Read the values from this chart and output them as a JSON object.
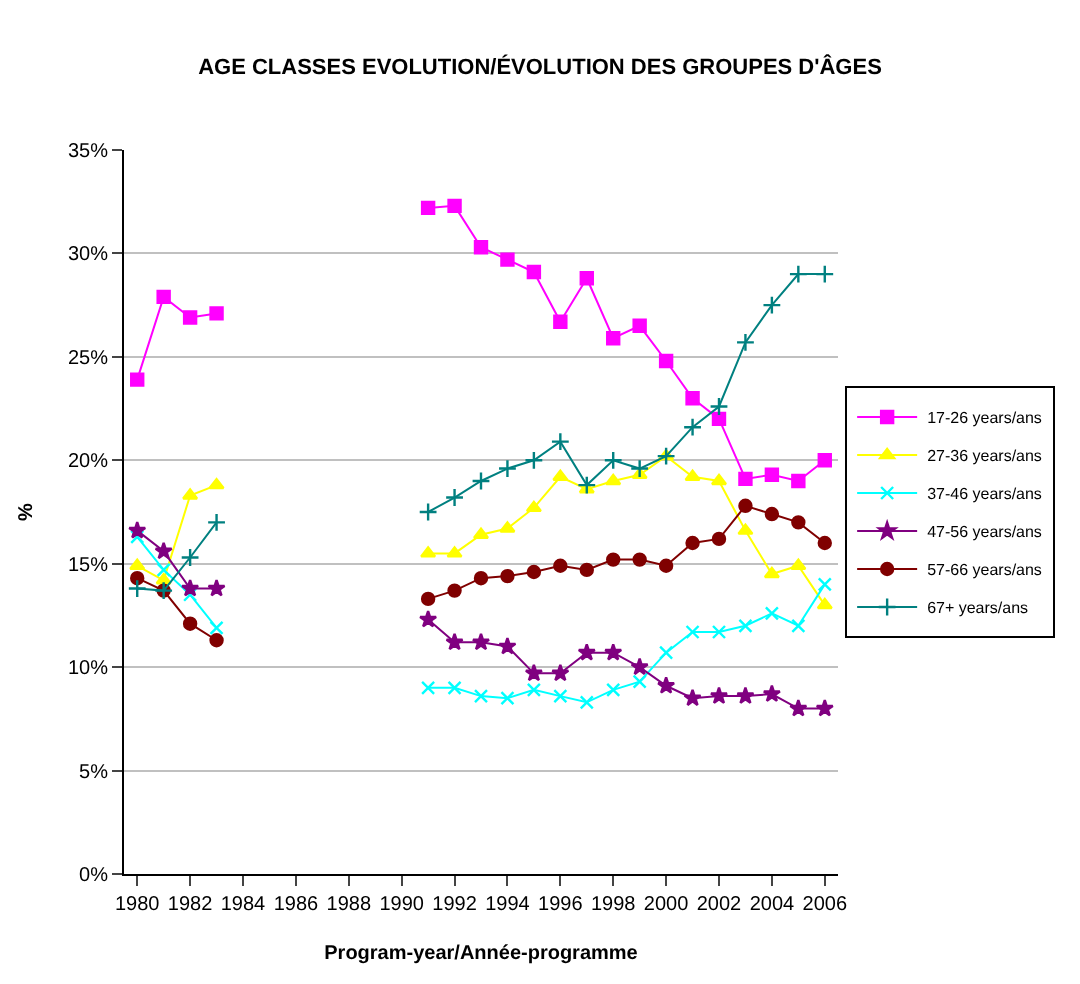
{
  "chart_data": {
    "type": "line",
    "title": "AGE CLASSES EVOLUTION/ÉVOLUTION DES GROUPES D'ÂGES",
    "xlabel": "Program-year/Année-programme",
    "ylabel": "%",
    "x": [
      1980,
      1981,
      1982,
      1983,
      1984,
      1985,
      1986,
      1987,
      1988,
      1989,
      1990,
      1991,
      1992,
      1993,
      1994,
      1995,
      1996,
      1997,
      1998,
      1999,
      2000,
      2001,
      2002,
      2003,
      2004,
      2005,
      2006
    ],
    "series": [
      {
        "name": "17-26 years/ans",
        "color": "#ff00ff",
        "marker": "square",
        "values": [
          23.9,
          27.9,
          26.9,
          27.1,
          null,
          null,
          null,
          null,
          null,
          null,
          null,
          32.2,
          32.3,
          30.3,
          29.7,
          29.1,
          26.7,
          28.8,
          25.9,
          26.5,
          24.8,
          23.0,
          22.0,
          19.1,
          19.3,
          19.0,
          20.0
        ]
      },
      {
        "name": "27-36 years/ans",
        "color": "#ffff00",
        "marker": "triangle",
        "values": [
          14.9,
          14.2,
          18.3,
          18.8,
          null,
          null,
          null,
          null,
          null,
          null,
          null,
          15.5,
          15.5,
          16.4,
          16.7,
          17.7,
          19.2,
          18.6,
          19.0,
          19.3,
          20.2,
          19.2,
          19.0,
          16.6,
          14.5,
          14.9,
          13.0
        ]
      },
      {
        "name": "37-46 years/ans",
        "color": "#00ffff",
        "marker": "x",
        "values": [
          16.3,
          14.7,
          13.5,
          11.9,
          null,
          null,
          null,
          null,
          null,
          null,
          null,
          9.0,
          9.0,
          8.6,
          8.5,
          8.9,
          8.6,
          8.3,
          8.9,
          9.3,
          10.7,
          11.7,
          11.7,
          12.0,
          12.6,
          12.0,
          14.0
        ]
      },
      {
        "name": "47-56 years/ans",
        "color": "#800080",
        "marker": "star",
        "values": [
          16.6,
          15.6,
          13.8,
          13.8,
          null,
          null,
          null,
          null,
          null,
          null,
          null,
          12.3,
          11.2,
          11.2,
          11.0,
          9.7,
          9.7,
          10.7,
          10.7,
          10.0,
          9.1,
          8.5,
          8.6,
          8.6,
          8.7,
          8.0,
          8.0
        ]
      },
      {
        "name": "57-66 years/ans",
        "color": "#800000",
        "marker": "circle",
        "values": [
          14.3,
          13.7,
          12.1,
          11.3,
          null,
          null,
          null,
          null,
          null,
          null,
          null,
          13.3,
          13.7,
          14.3,
          14.4,
          14.6,
          14.9,
          14.7,
          15.2,
          15.2,
          14.9,
          16.0,
          16.2,
          17.8,
          17.4,
          17.0,
          16.0
        ]
      },
      {
        "name": "67+ years/ans",
        "color": "#008080",
        "marker": "cross",
        "values": [
          13.8,
          13.7,
          15.3,
          17.0,
          null,
          null,
          null,
          null,
          null,
          null,
          null,
          17.5,
          18.2,
          19.0,
          19.6,
          20.0,
          20.9,
          18.8,
          20.0,
          19.6,
          20.2,
          21.6,
          22.6,
          25.7,
          27.5,
          29.0,
          29.0
        ]
      }
    ],
    "xlim": [
      1979.5,
      2006.5
    ],
    "xticks": [
      1980,
      1982,
      1984,
      1986,
      1988,
      1990,
      1992,
      1994,
      1996,
      1998,
      2000,
      2002,
      2004,
      2006
    ],
    "ylim": [
      0,
      35
    ],
    "yticks": [
      {
        "value": 0,
        "label": "0%"
      },
      {
        "value": 5,
        "label": "5%"
      },
      {
        "value": 10,
        "label": "10%"
      },
      {
        "value": 15,
        "label": "15%"
      },
      {
        "value": 20,
        "label": "20%"
      },
      {
        "value": 25,
        "label": "25%"
      },
      {
        "value": 30,
        "label": "30%"
      },
      {
        "value": 35,
        "label": "35%"
      }
    ],
    "grid": "y",
    "legend": "right"
  }
}
